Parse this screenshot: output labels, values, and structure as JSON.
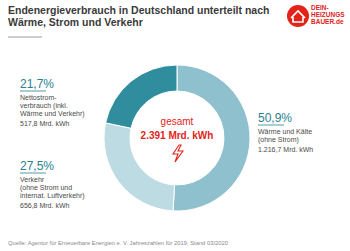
{
  "chart_data": {
    "type": "pie",
    "title": "Endenergieverbrauch in Deutschland unterteilt nach\nWärme, Strom und Verkehr",
    "categories": [
      "Wärme und Kälte\n(ohne Strom)",
      "Verkehr\n(ohne Strom und\ninternat. Luftverkehr)",
      "Nettostrom-\nverbrauch (inkl.\nWärme und Verkehr)"
    ],
    "values": [
      50.9,
      27.5,
      21.7
    ],
    "value_labels": [
      "50,9%",
      "27,5%",
      "21,7%"
    ],
    "amounts": [
      1216.7,
      656.8,
      517.8
    ],
    "amount_labels": [
      "1.216,7 Mrd. kWh",
      "656,8 Mrd. kWh",
      "517,8 Mrd. kWh"
    ],
    "colors": [
      "#8fc0ce",
      "#bcdbe3",
      "#2f8d9d"
    ],
    "total_text": "gesamt",
    "total": 2391,
    "total_label": "2.391 Mrd. kWh",
    "data_labels": true,
    "logo": [
      "DEIN-",
      "HEIZUNGS",
      "BAUER.de"
    ],
    "source": "Quelle: Agentur für Erneuerbare Energien e. V. Jahreszahlen für 2019, Stand 03/2020"
  }
}
